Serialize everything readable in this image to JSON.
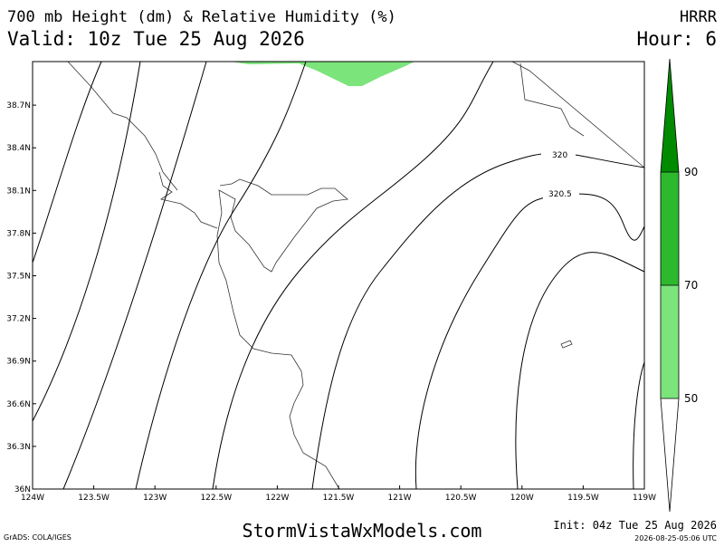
{
  "header": {
    "title": "700 mb Height (dm) & Relative Humidity (%)",
    "model": "HRRR",
    "valid": "Valid: 10z Tue 25 Aug 2026",
    "hour": "Hour: 6"
  },
  "map": {
    "lat_labels": [
      "36N",
      "36.3N",
      "36.6N",
      "36.9N",
      "37.2N",
      "37.5N",
      "37.8N",
      "38.1N",
      "38.4N",
      "38.7N"
    ],
    "lon_labels": [
      "124W",
      "123.5W",
      "123W",
      "122.5W",
      "122W",
      "121.5W",
      "121W",
      "120.5W",
      "120W",
      "119.5W",
      "119W"
    ],
    "contour_labels": [
      "320",
      "320.5"
    ]
  },
  "colorbar": {
    "labels": [
      50,
      70,
      90
    ]
  },
  "footer": {
    "credit": "GrADS: COLA/IGES",
    "site": "StormVistaWxModels.com",
    "init": "Init: 04z Tue 25 Aug 2026",
    "timestamp": "2026-08-25-05:06 UTC"
  }
}
